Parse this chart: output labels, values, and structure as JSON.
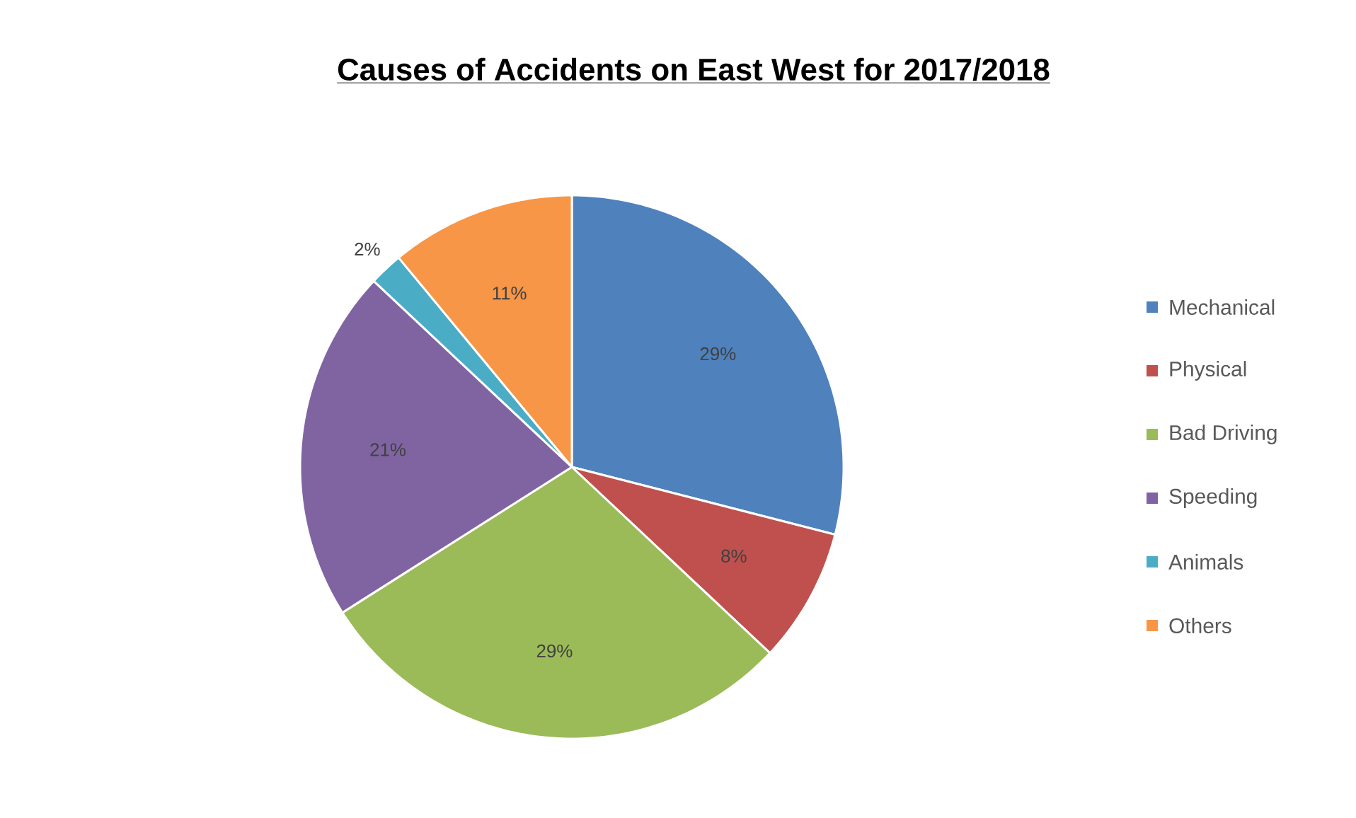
{
  "chart_data": {
    "type": "pie",
    "title": "Causes of Accidents on East West for 2017/2018",
    "categories": [
      "Mechanical",
      "Physical",
      "Bad Driving",
      "Speeding",
      "Animals",
      "Others"
    ],
    "values": [
      29,
      8,
      29,
      21,
      2,
      11
    ],
    "colors": [
      "#4f81bd",
      "#c0504d",
      "#9bbb59",
      "#8064a2",
      "#4bacc6",
      "#f79646"
    ],
    "value_labels": [
      "29%",
      "8%",
      "29%",
      "21%",
      "2%",
      "11%"
    ],
    "legend": "right"
  }
}
